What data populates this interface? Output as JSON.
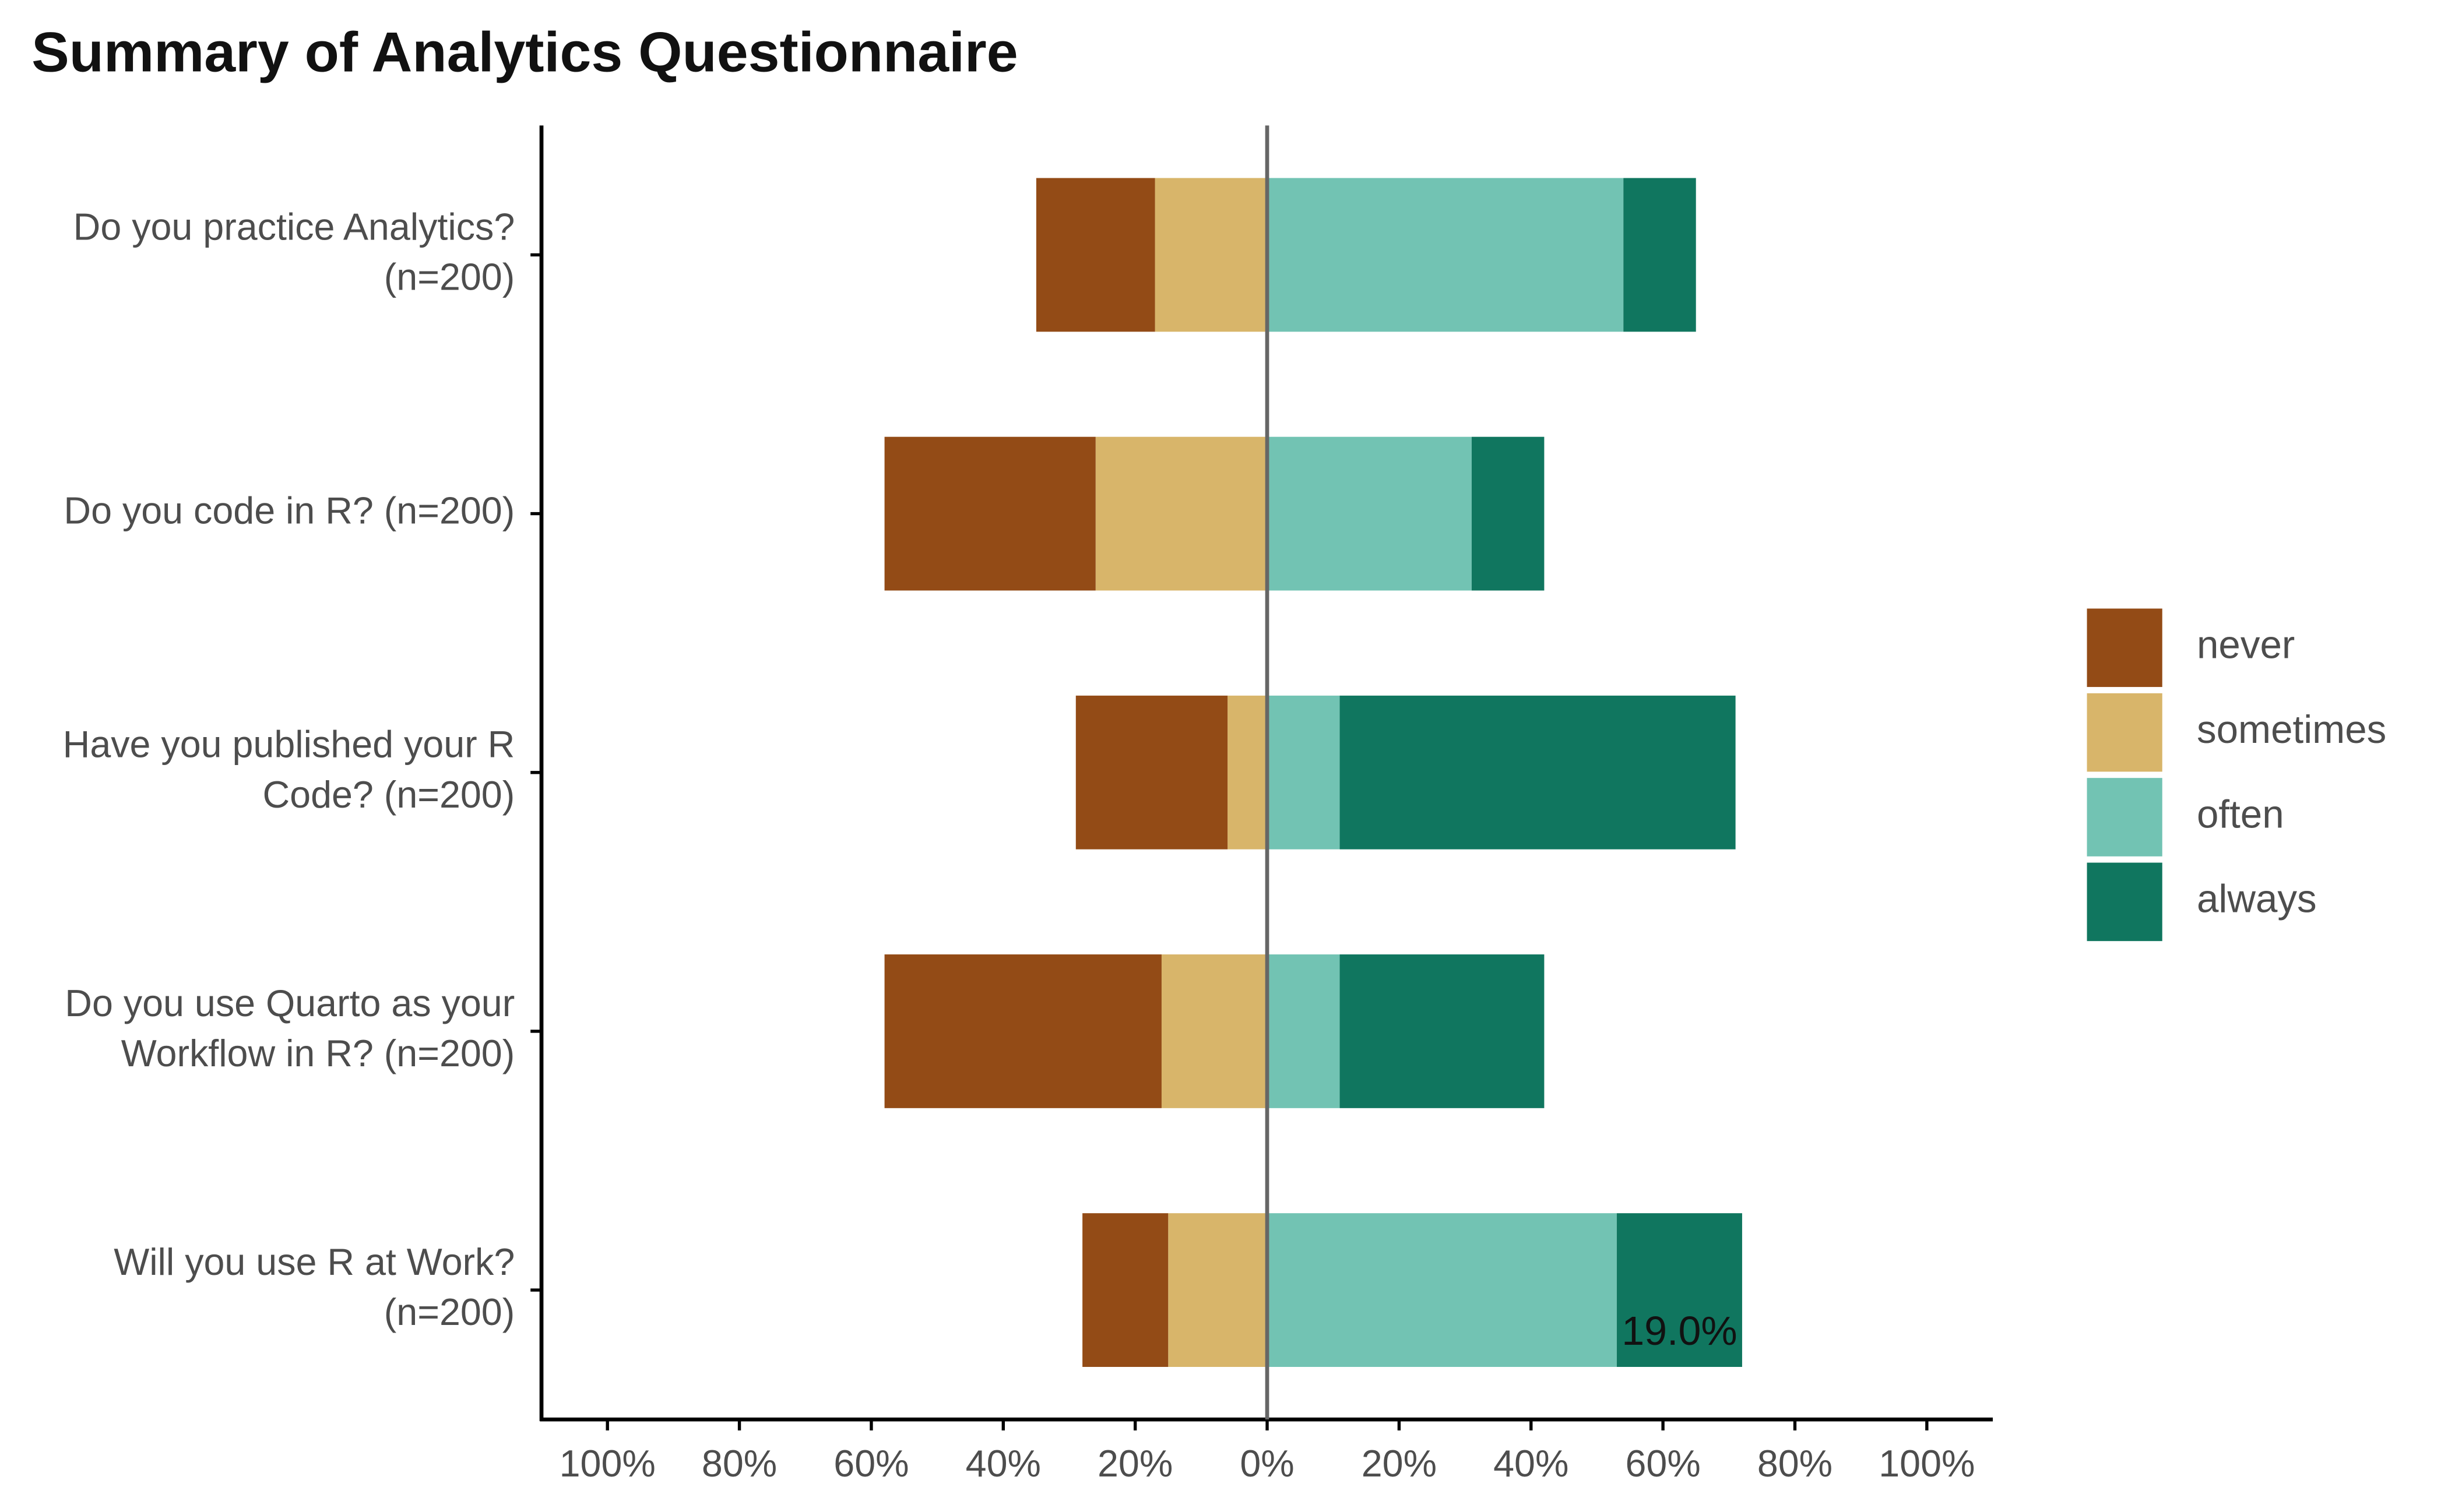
{
  "chart_data": {
    "type": "diverging_bar",
    "title": "Summary of Analytics Questionnaire",
    "categories": [
      [
        "Do you practice Analytics?",
        "(n=200)"
      ],
      [
        "Do you code in R? (n=200)"
      ],
      [
        "Have you published your R",
        "Code? (n=200)"
      ],
      [
        "Do you use Quarto as your",
        "Workflow in R? (n=200)"
      ],
      [
        "Will you use R at Work?",
        "(n=200)"
      ]
    ],
    "series": [
      {
        "name": "never",
        "color": "#934b16",
        "side": "left",
        "values": [
          18,
          32,
          23,
          42,
          13
        ]
      },
      {
        "name": "sometimes",
        "color": "#d8b56a",
        "side": "left",
        "values": [
          17,
          26,
          6,
          16,
          15
        ]
      },
      {
        "name": "often",
        "color": "#72c3b3",
        "side": "right",
        "values": [
          54,
          31,
          11,
          11,
          53
        ]
      },
      {
        "name": "always",
        "color": "#10765f",
        "side": "right",
        "values": [
          11,
          11,
          60,
          31,
          19
        ],
        "value_labels": [
          null,
          null,
          null,
          null,
          "19.0%"
        ]
      }
    ],
    "xlim": [
      -110,
      110
    ],
    "xticks": [
      {
        "value": -100,
        "label": "100%"
      },
      {
        "value": -80,
        "label": "80%"
      },
      {
        "value": -60,
        "label": "60%"
      },
      {
        "value": -40,
        "label": "40%"
      },
      {
        "value": -20,
        "label": "20%"
      },
      {
        "value": 0,
        "label": "0%"
      },
      {
        "value": 20,
        "label": "20%"
      },
      {
        "value": 40,
        "label": "40%"
      },
      {
        "value": 60,
        "label": "60%"
      },
      {
        "value": 80,
        "label": "80%"
      },
      {
        "value": 100,
        "label": "100%"
      }
    ],
    "legend": "right"
  }
}
